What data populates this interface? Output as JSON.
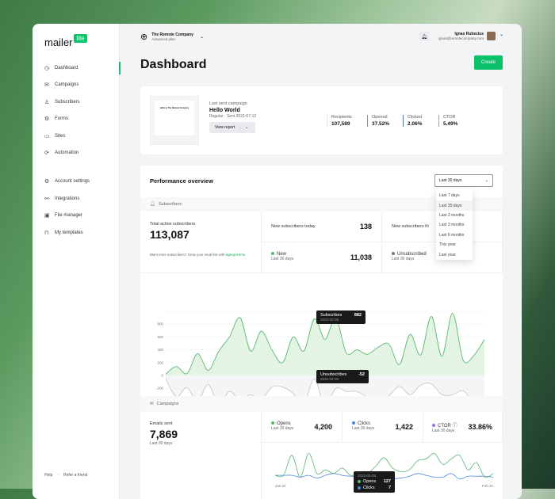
{
  "brand": {
    "name": "mailer",
    "badge": "lite"
  },
  "sidebar": {
    "items": [
      {
        "label": "Dashboard",
        "icon": "clock-icon"
      },
      {
        "label": "Campaigns",
        "icon": "mail-icon"
      },
      {
        "label": "Subscribers",
        "icon": "user-icon"
      },
      {
        "label": "Forms",
        "icon": "gear-icon"
      },
      {
        "label": "Sites",
        "icon": "window-icon"
      },
      {
        "label": "Automation",
        "icon": "refresh-icon"
      },
      {
        "label": "Account settings",
        "icon": "gear-icon"
      },
      {
        "label": "Integrations",
        "icon": "link-icon"
      },
      {
        "label": "File manager",
        "icon": "image-icon"
      },
      {
        "label": "My templates",
        "icon": "lock-icon"
      }
    ],
    "active": "Dashboard",
    "footer": {
      "help": "Help",
      "refer": "Refer a friend"
    }
  },
  "header": {
    "company": "The Remote Company",
    "plan": "Advanced plan",
    "user_name": "Ignas Rubezius",
    "user_email": "ignas@remotecompany.com"
  },
  "page": {
    "title": "Dashboard",
    "create_label": "Create"
  },
  "last_campaign": {
    "label": "Last sent campaign",
    "name": "Hello World",
    "type": "Regular",
    "sent": "Sent 2021-07-12",
    "view_report": "View report",
    "preview_title": "Hello to The Remote Company",
    "stats": [
      {
        "label": "Recipients",
        "value": "107,589",
        "color": "#e5e7eb"
      },
      {
        "label": "Opened",
        "value": "37.52%",
        "color": "#3fbf8a"
      },
      {
        "label": "Clicked",
        "value": "2.06%",
        "color": "#4a78b5"
      },
      {
        "label": "CTOR",
        "value": "5.49%",
        "color": "#b78be0"
      }
    ]
  },
  "performance": {
    "title": "Performance overview",
    "range": "Last 30 days",
    "range_options": [
      "Last 7 days",
      "Last 30 days",
      "Last 2 months",
      "Last 3 months",
      "Last 6 months",
      "This year",
      "Last year"
    ],
    "subscribers": {
      "section": "Subscribers",
      "total_label": "Total active subscribers",
      "total": "113,087",
      "grow_text": "Want more subscribers? Grow your email list with ",
      "grow_link": "signup forms",
      "grow_end": ".",
      "today_label": "New subscribers today",
      "today": "138",
      "this_label": "New subscribers th",
      "new_label": "New",
      "new_sub": "Last 30 days",
      "new_value": "11,038",
      "unsub_label": "Unsubscribed",
      "unsub_sub": "Last 30 days"
    },
    "campaigns": {
      "section": "Campaigns",
      "sent_label": "Emails sent",
      "sent": "7,869",
      "sent_sub": "Last 30 days",
      "opens_label": "Opens",
      "opens_sub": "Last 30 days",
      "opens": "4,200",
      "clicks_label": "Clicks",
      "clicks_sub": "Last 30 days",
      "clicks": "1,422",
      "ctor_label": "CTOR",
      "ctor_sub": "Last 30 days",
      "ctor": "33.86%"
    }
  },
  "colors": {
    "accent": "#09c269",
    "subscribes": "#5bb870",
    "unsubscribes": "#c8c8cc",
    "opens": "#5bb870",
    "clicks": "#4a86d6",
    "ctor": "#9b6be0"
  },
  "chart_data": [
    {
      "type": "area",
      "ylim": [
        -500,
        1000
      ],
      "yticks": [
        800,
        600,
        400,
        200,
        0,
        -200,
        -400
      ],
      "grid": true,
      "series": [
        {
          "name": "Subscribes",
          "values": [
            20,
            140,
            30,
            340,
            80,
            380,
            600,
            900,
            380,
            690,
            400,
            200,
            600,
            380,
            882,
            560,
            900,
            350,
            400,
            330,
            440,
            490,
            170,
            640,
            320,
            920,
            300,
            970,
            240,
            310,
            560
          ]
        },
        {
          "name": "Unsubscribes",
          "values": [
            -50,
            -330,
            -190,
            -400,
            -140,
            -460,
            -250,
            -390,
            -300,
            -370,
            -180,
            -180,
            -280,
            -430,
            -52,
            -490,
            -200,
            -250,
            -250,
            -350,
            -470,
            -320,
            -170,
            -300,
            -150,
            -130,
            -300,
            -300,
            -240,
            -420,
            -490
          ]
        }
      ],
      "tooltips": [
        {
          "series": "Subscribes",
          "value": "882",
          "date": "2022-02-05"
        },
        {
          "series": "Unsubscribes",
          "value": "-52",
          "date": "2022-02-05"
        }
      ]
    },
    {
      "type": "line",
      "x_labels": [
        "Jan 22",
        "Feb 21"
      ],
      "series": [
        {
          "name": "Opens",
          "values": [
            30,
            30,
            140,
            20,
            150,
            40,
            60,
            40,
            70,
            30,
            40,
            40,
            80,
            127,
            70,
            50,
            60,
            110,
            120,
            150,
            90,
            120,
            140,
            60,
            100,
            20,
            40
          ]
        },
        {
          "name": "Clicks",
          "values": [
            30,
            30,
            30,
            20,
            30,
            15,
            30,
            40,
            30,
            25,
            25,
            25,
            25,
            7,
            10,
            15,
            25,
            40,
            30,
            20,
            20,
            40,
            10,
            25,
            25,
            25,
            20
          ]
        }
      ],
      "tooltip": {
        "date": "2022-02-08",
        "opens": "127",
        "clicks": "7"
      }
    }
  ]
}
